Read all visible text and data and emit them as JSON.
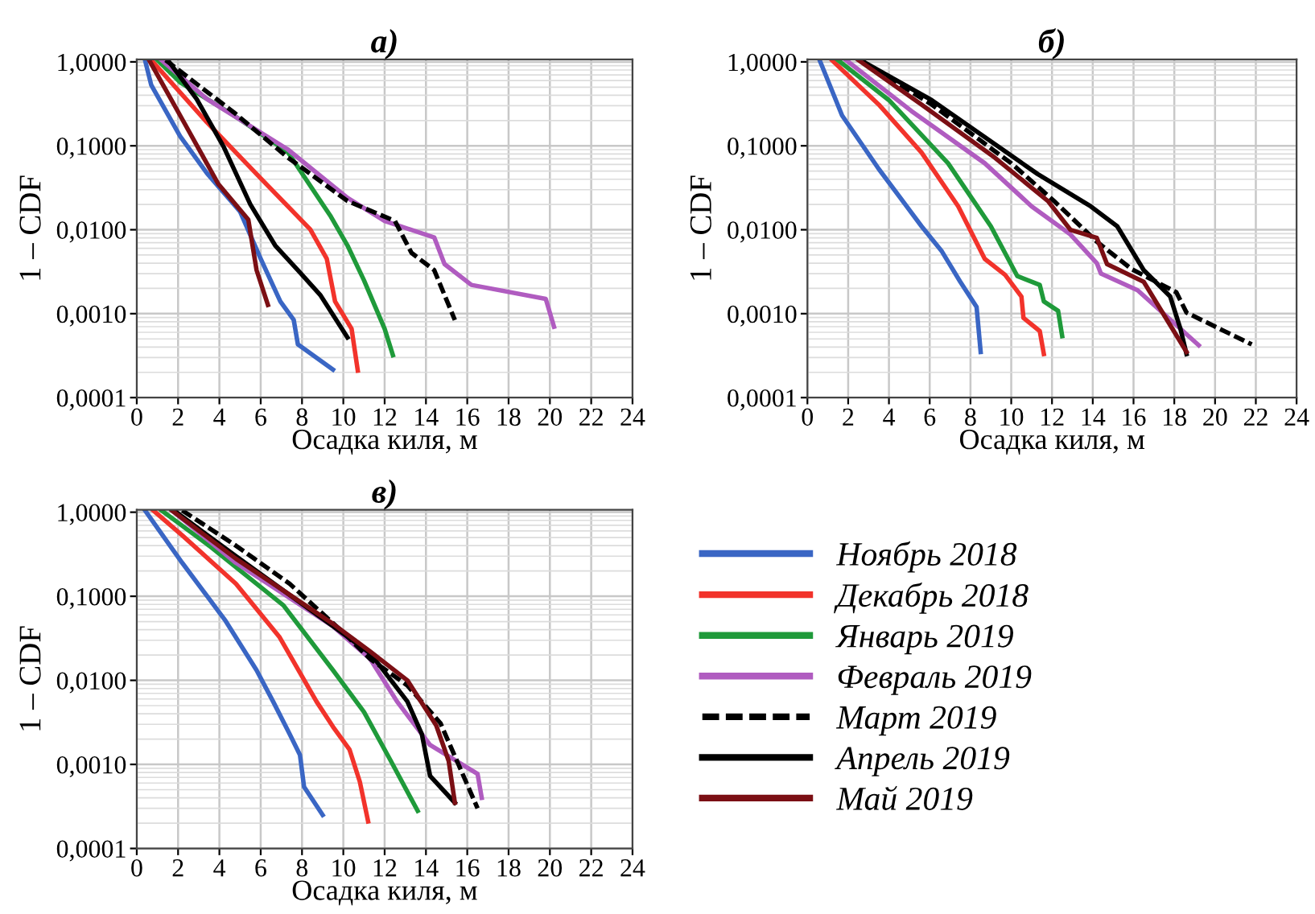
{
  "chart_data": [
    {
      "type": "line",
      "title": "а)",
      "xlabel": "Осадка киля, м",
      "ylabel": "1 – CDF",
      "log": "y",
      "xlim": [
        0,
        24
      ],
      "xticks": [
        0,
        2,
        4,
        6,
        8,
        10,
        12,
        14,
        16,
        18,
        20,
        22,
        24
      ],
      "ylim": [
        0.0001,
        1.07
      ],
      "yticks": [
        {
          "value": 1,
          "label": "1,0000"
        },
        {
          "value": 0.1,
          "label": "0,1000"
        },
        {
          "value": 0.01,
          "label": "0,0100"
        },
        {
          "value": 0.001,
          "label": "0,0010"
        },
        {
          "value": 0.0001,
          "label": "0,0001"
        }
      ],
      "grid": true,
      "legend": false,
      "series": [
        {
          "color": "#3a66c4",
          "x": [
            0.4,
            0.7,
            2.1,
            3.4,
            5.0,
            6.0,
            6.95,
            7.6,
            7.8,
            9.5
          ],
          "values": [
            1.05,
            0.53,
            0.13,
            0.047,
            0.0165,
            0.0045,
            0.0014,
            0.00084,
            0.00043,
            0.000215
          ]
        },
        {
          "color": "#f2332b",
          "x": [
            0.7,
            3.4,
            6.0,
            8.4,
            9.2,
            9.6,
            10.4,
            10.7
          ],
          "values": [
            1.05,
            0.19,
            0.041,
            0.0101,
            0.0045,
            0.0014,
            0.00066,
            0.00021
          ]
        },
        {
          "color": "#1f9a3a",
          "x": [
            1.0,
            2.1,
            4.7,
            7.3,
            9.4,
            10.2,
            11.0,
            12.0,
            12.4
          ],
          "values": [
            1.05,
            0.57,
            0.23,
            0.085,
            0.0143,
            0.0065,
            0.0025,
            0.00066,
            0.00032
          ]
        },
        {
          "color": "#b05cc0",
          "x": [
            1.2,
            3.4,
            7.3,
            10.2,
            12.0,
            14.4,
            14.9,
            16.2,
            19.8,
            20.2
          ],
          "values": [
            1.05,
            0.36,
            0.091,
            0.024,
            0.0127,
            0.0081,
            0.0039,
            0.0022,
            0.0015,
            0.0007
          ]
        },
        {
          "color": "#000000",
          "line_style": "dashed",
          "x": [
            1.4,
            4.7,
            7.3,
            10.2,
            12.5,
            13.3,
            14.4,
            15.4
          ],
          "values": [
            1.05,
            0.25,
            0.073,
            0.022,
            0.0127,
            0.0053,
            0.0033,
            0.00084
          ]
        },
        {
          "color": "#000000",
          "x": [
            1.5,
            2.9,
            4.2,
            5.5,
            6.7,
            7.9,
            8.9,
            10.2
          ],
          "values": [
            1.05,
            0.36,
            0.098,
            0.02,
            0.0065,
            0.0031,
            0.00165,
            0.00052
          ]
        },
        {
          "color": "#7b0f14",
          "x": [
            0.6,
            2.1,
            3.95,
            5.4,
            5.8,
            6.35
          ],
          "values": [
            1.05,
            0.23,
            0.035,
            0.0132,
            0.0033,
            0.00127
          ]
        }
      ]
    },
    {
      "type": "line",
      "title": "б)",
      "xlabel": "Осадка киля, м",
      "ylabel": "1 – CDF",
      "log": "y",
      "xlim": [
        0,
        24
      ],
      "xticks": [
        0,
        2,
        4,
        6,
        8,
        10,
        12,
        14,
        16,
        18,
        20,
        22,
        24
      ],
      "ylim": [
        0.0001,
        1.07
      ],
      "yticks": [
        {
          "value": 1,
          "label": "1,0000"
        },
        {
          "value": 0.1,
          "label": "0,1000"
        },
        {
          "value": 0.01,
          "label": "0,0100"
        },
        {
          "value": 0.001,
          "label": "0,0010"
        },
        {
          "value": 0.0001,
          "label": "0,0001"
        }
      ],
      "grid": true,
      "legend": false,
      "series": [
        {
          "color": "#3a66c4",
          "x": [
            0.6,
            1.7,
            3.5,
            5.6,
            6.6,
            7.5,
            8.3,
            8.5
          ],
          "values": [
            1.05,
            0.23,
            0.053,
            0.011,
            0.0055,
            0.0024,
            0.0012,
            0.00035
          ]
        },
        {
          "color": "#f2332b",
          "x": [
            1.2,
            3.5,
            5.6,
            7.4,
            8.7,
            9.7,
            10.5,
            10.6,
            11.4,
            11.6
          ],
          "values": [
            1.05,
            0.31,
            0.083,
            0.019,
            0.0045,
            0.0029,
            0.0016,
            0.00089,
            0.00062,
            0.00033
          ]
        },
        {
          "color": "#1f9a3a",
          "x": [
            1.5,
            4.0,
            6.9,
            9.0,
            10.3,
            11.4,
            11.6,
            12.3,
            12.5
          ],
          "values": [
            1.05,
            0.35,
            0.062,
            0.011,
            0.0028,
            0.0022,
            0.0014,
            0.00108,
            0.00054
          ]
        },
        {
          "color": "#b05cc0",
          "x": [
            1.9,
            5.1,
            8.7,
            11.0,
            12.9,
            14.2,
            14.4,
            16.2,
            19.2
          ],
          "values": [
            1.05,
            0.26,
            0.062,
            0.019,
            0.0088,
            0.004,
            0.003,
            0.0019,
            0.00042
          ]
        },
        {
          "color": "#000000",
          "line_style": "dashed",
          "x": [
            2.6,
            6.1,
            10.0,
            12.1,
            14.2,
            15.9,
            18.1,
            18.6,
            21.8
          ],
          "values": [
            1.05,
            0.31,
            0.062,
            0.022,
            0.0072,
            0.0034,
            0.0018,
            0.00103,
            0.00043
          ]
        },
        {
          "color": "#000000",
          "x": [
            2.6,
            6.1,
            11.3,
            13.9,
            15.2,
            16.5,
            17.8,
            18.3,
            18.6
          ],
          "values": [
            1.05,
            0.35,
            0.046,
            0.019,
            0.011,
            0.0033,
            0.0016,
            0.00066,
            0.00033
          ]
        },
        {
          "color": "#7b0f14",
          "x": [
            2.5,
            5.6,
            9.2,
            11.8,
            12.9,
            14.2,
            14.7,
            16.5,
            18.6
          ],
          "values": [
            1.05,
            0.31,
            0.072,
            0.022,
            0.01,
            0.008,
            0.0039,
            0.0024,
            0.00035
          ]
        }
      ]
    },
    {
      "type": "line",
      "title": "в)",
      "xlabel": "Осадка киля, м",
      "ylabel": "1 – CDF",
      "log": "y",
      "xlim": [
        0,
        24
      ],
      "xticks": [
        0,
        2,
        4,
        6,
        8,
        10,
        12,
        14,
        16,
        18,
        20,
        22,
        24
      ],
      "ylim": [
        0.0001,
        1.07
      ],
      "yticks": [
        {
          "value": 1,
          "label": "1,0000"
        },
        {
          "value": 0.1,
          "label": "0,1000"
        },
        {
          "value": 0.01,
          "label": "0,0100"
        },
        {
          "value": 0.001,
          "label": "0,0010"
        },
        {
          "value": 0.0001,
          "label": "0,0001"
        }
      ],
      "grid": true,
      "legend": "right",
      "series": [
        {
          "name": "Ноябрь 2018",
          "color": "#3a66c4",
          "x": [
            0.4,
            2.2,
            4.3,
            5.8,
            6.6,
            7.4,
            7.9,
            8.1,
            9.0
          ],
          "values": [
            1.05,
            0.25,
            0.051,
            0.0132,
            0.0056,
            0.0023,
            0.0013,
            0.00054,
            0.00025
          ]
        },
        {
          "name": "Декабрь 2018",
          "color": "#f2332b",
          "x": [
            0.8,
            2.2,
            4.8,
            6.9,
            8.7,
            9.5,
            10.3,
            10.8,
            11.2
          ],
          "values": [
            1.05,
            0.53,
            0.141,
            0.033,
            0.0056,
            0.0028,
            0.0015,
            0.00062,
            0.00021
          ]
        },
        {
          "name": "Январь 2019",
          "color": "#1f9a3a",
          "x": [
            1.2,
            3.5,
            7.1,
            9.5,
            11.0,
            12.3,
            13.6
          ],
          "values": [
            1.05,
            0.4,
            0.078,
            0.0132,
            0.0042,
            0.0011,
            0.00028
          ]
        },
        {
          "name": "Февраль 2019",
          "color": "#b05cc0",
          "x": [
            1.7,
            4.8,
            9.5,
            11.3,
            12.6,
            14.2,
            16.5,
            16.7
          ],
          "values": [
            1.05,
            0.25,
            0.044,
            0.018,
            0.0056,
            0.0017,
            0.00077,
            0.0004
          ]
        },
        {
          "name": "Март 2019",
          "color": "#000000",
          "line_style": "dashed",
          "x": [
            2.2,
            4.8,
            7.4,
            10.0,
            11.3,
            13.1,
            14.7,
            15.5,
            16.5
          ],
          "values": [
            1.05,
            0.4,
            0.141,
            0.037,
            0.018,
            0.0087,
            0.0031,
            0.0011,
            0.0003
          ]
        },
        {
          "name": "Апрель 2019",
          "color": "#000000",
          "x": [
            1.8,
            4.8,
            9.5,
            11.3,
            13.1,
            13.8,
            14.2,
            15.4
          ],
          "values": [
            1.05,
            0.3,
            0.044,
            0.021,
            0.0056,
            0.0023,
            0.00073,
            0.00035
          ]
        },
        {
          "name": "Май 2019",
          "color": "#7b0f14",
          "x": [
            1.7,
            4.8,
            9.5,
            11.3,
            13.1,
            14.5,
            15.1,
            15.4
          ],
          "values": [
            1.05,
            0.28,
            0.047,
            0.022,
            0.01,
            0.0029,
            0.0011,
            0.00035
          ]
        }
      ]
    }
  ]
}
